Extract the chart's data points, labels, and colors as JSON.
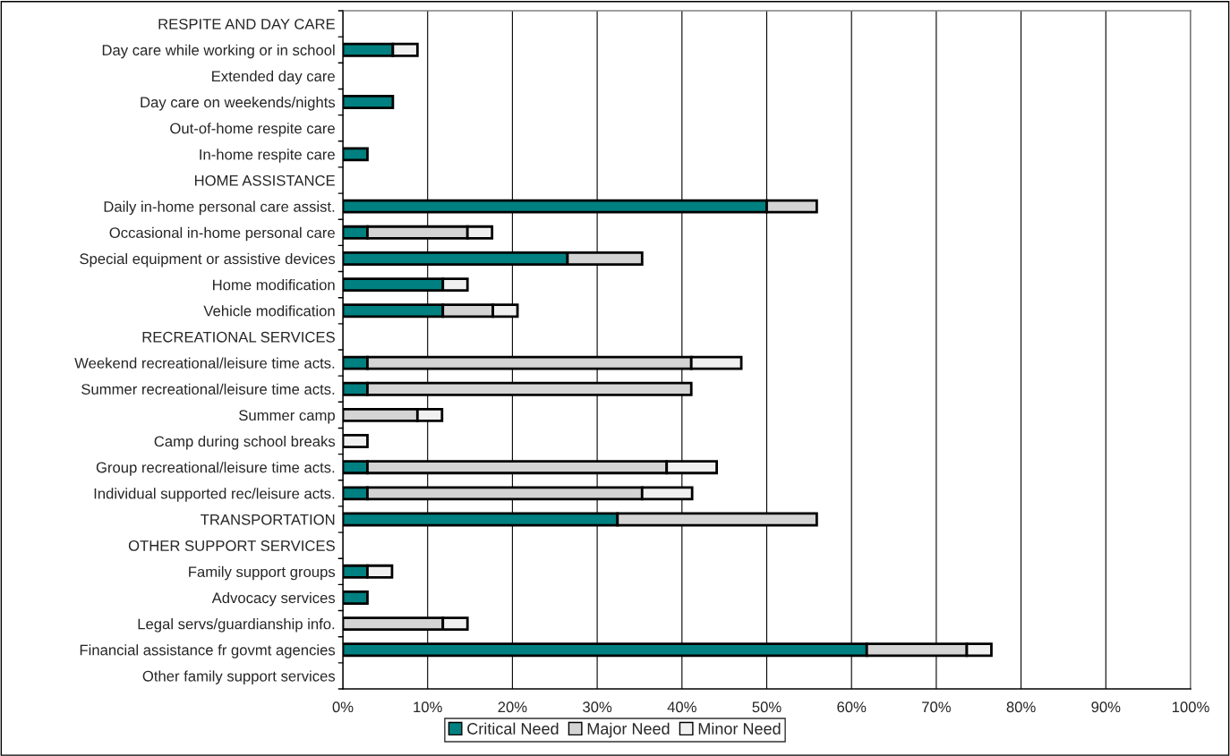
{
  "chart_data": {
    "type": "bar",
    "orientation": "horizontal",
    "stacked": true,
    "categories": [
      "RESPITE AND DAY CARE",
      "Day care while working or in school",
      "Extended day care",
      "Day care on weekends/nights",
      "Out-of-home respite care",
      "In-home respite care",
      "HOME ASSISTANCE",
      "Daily in-home personal care assist.",
      "Occasional in-home personal care",
      "Special equipment or assistive devices",
      "Home modification",
      "Vehicle modification",
      "RECREATIONAL SERVICES",
      "Weekend recreational/leisure time acts.",
      "Summer recreational/leisure time acts.",
      "Summer camp",
      "Camp during school breaks",
      "Group recreational/leisure time acts.",
      "Individual supported rec/leisure acts.",
      "TRANSPORTATION",
      "OTHER SUPPORT SERVICES",
      "Family support groups",
      "Advocacy services",
      "Legal servs/guardianship info.",
      "Financial assistance fr govmt agencies",
      "Other family support services"
    ],
    "series": [
      {
        "name": "Critical Need",
        "color": "#008080",
        "values": [
          null,
          5.9,
          null,
          5.9,
          null,
          2.9,
          null,
          50.0,
          2.9,
          26.5,
          11.8,
          11.8,
          null,
          2.9,
          2.9,
          null,
          null,
          2.9,
          2.9,
          32.4,
          null,
          2.9,
          2.9,
          null,
          61.8,
          null
        ]
      },
      {
        "name": "Major Need",
        "color": "#d4d4d4",
        "values": [
          null,
          null,
          null,
          null,
          null,
          null,
          null,
          5.9,
          11.8,
          8.8,
          null,
          5.9,
          null,
          38.2,
          38.2,
          8.8,
          null,
          35.3,
          32.4,
          23.5,
          null,
          null,
          null,
          11.8,
          11.8,
          null
        ]
      },
      {
        "name": "Minor Need",
        "color": "#f0f0f0",
        "values": [
          null,
          2.9,
          null,
          null,
          null,
          null,
          null,
          null,
          2.9,
          null,
          2.9,
          2.9,
          null,
          5.9,
          null,
          2.9,
          2.9,
          5.9,
          5.9,
          null,
          null,
          2.9,
          null,
          2.9,
          2.9,
          null
        ]
      }
    ],
    "xlim": [
      0,
      100
    ],
    "xticks": [
      {
        "value": 0,
        "label": "0%"
      },
      {
        "value": 10,
        "label": "10%"
      },
      {
        "value": 20,
        "label": "20%"
      },
      {
        "value": 30,
        "label": "30%"
      },
      {
        "value": 40,
        "label": "40%"
      },
      {
        "value": 50,
        "label": "50%"
      },
      {
        "value": 60,
        "label": "60%"
      },
      {
        "value": 70,
        "label": "70%"
      },
      {
        "value": 80,
        "label": "80%"
      },
      {
        "value": 90,
        "label": "90%"
      },
      {
        "value": 100,
        "label": "100%"
      }
    ],
    "grid": "x",
    "legend": "bottom"
  }
}
